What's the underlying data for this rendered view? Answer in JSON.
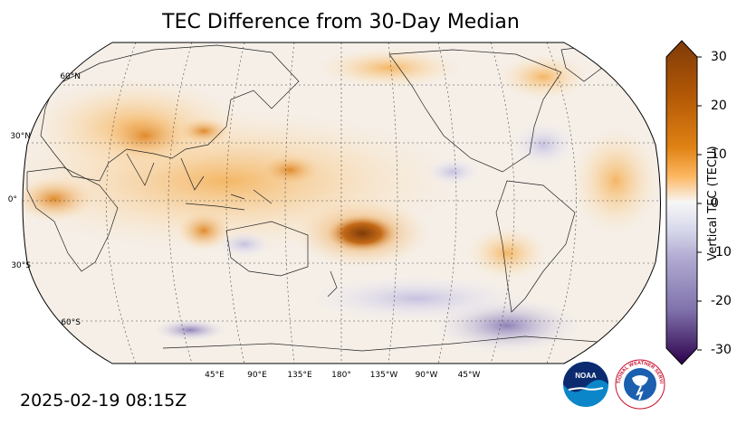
{
  "title": "TEC Difference from 30-Day Median",
  "timestamp": "2025-02-19 08:15Z",
  "map": {
    "projection": "Robinson, centered 180°",
    "lat_labels": [
      "60°N",
      "30°N",
      "0°",
      "30°S",
      "60°S"
    ],
    "lon_labels": [
      "45°E",
      "90°E",
      "135°E",
      "180°",
      "135°W",
      "90°W",
      "45°W"
    ]
  },
  "colorbar": {
    "label": "Vertical TEC (TECU)",
    "ticks": [
      "30",
      "20",
      "10",
      "0",
      "-10",
      "-20",
      "-30"
    ],
    "range": [
      -30,
      30
    ],
    "colors": {
      "max": "#7f3b08",
      "mid_pos": "#e08214",
      "zero": "#f7f7f7",
      "mid_neg": "#8073ac",
      "min": "#2d004b"
    }
  },
  "logos": {
    "noaa": "NOAA",
    "nws": "NATIONAL WEATHER SERVICE"
  }
}
